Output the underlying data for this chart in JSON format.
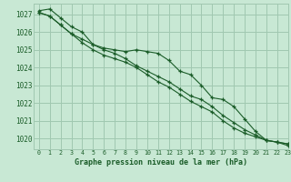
{
  "title": "Graphe pression niveau de la mer (hPa)",
  "background_color": "#c8e8d4",
  "grid_color": "#a0c8b0",
  "line_color": "#1a5c28",
  "xlim": [
    -0.5,
    23
  ],
  "ylim": [
    1019.4,
    1027.6
  ],
  "yticks": [
    1020,
    1021,
    1022,
    1023,
    1024,
    1025,
    1026,
    1027
  ],
  "xticks": [
    0,
    1,
    2,
    3,
    4,
    5,
    6,
    7,
    8,
    9,
    10,
    11,
    12,
    13,
    14,
    15,
    16,
    17,
    18,
    19,
    20,
    21,
    22,
    23
  ],
  "series1": [
    1027.2,
    1027.3,
    1026.8,
    1026.3,
    1026.0,
    1025.3,
    1025.1,
    1025.0,
    1024.9,
    1025.0,
    1024.9,
    1024.8,
    1024.4,
    1023.8,
    1023.6,
    1023.0,
    1022.3,
    1022.2,
    1021.8,
    1021.1,
    1020.4,
    1019.9,
    1019.8,
    1019.7
  ],
  "series2": [
    1027.1,
    1026.9,
    1026.4,
    1025.9,
    1025.6,
    1025.3,
    1025.0,
    1024.8,
    1024.5,
    1024.1,
    1023.8,
    1023.5,
    1023.2,
    1022.8,
    1022.4,
    1022.2,
    1021.8,
    1021.3,
    1020.9,
    1020.5,
    1020.2,
    1019.9,
    1019.8,
    1019.7
  ],
  "series3": [
    1027.1,
    1026.9,
    1026.4,
    1025.9,
    1025.4,
    1025.0,
    1024.7,
    1024.5,
    1024.3,
    1024.0,
    1023.6,
    1023.2,
    1022.9,
    1022.5,
    1022.1,
    1021.8,
    1021.5,
    1021.0,
    1020.6,
    1020.3,
    1020.1,
    1019.9,
    1019.8,
    1019.6
  ]
}
